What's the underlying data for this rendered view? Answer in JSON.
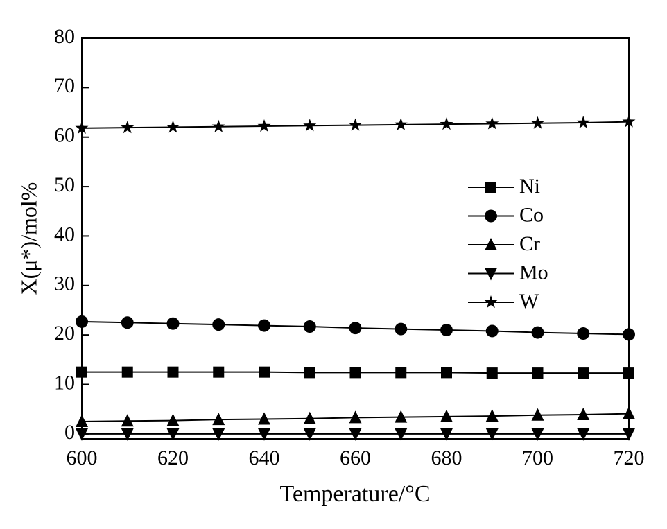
{
  "chart_data": {
    "type": "line",
    "x_label": "Temperature/°C",
    "y_label": "X(μ*)/mol%",
    "x": [
      600,
      610,
      620,
      630,
      640,
      650,
      660,
      670,
      680,
      690,
      700,
      710,
      720
    ],
    "series": [
      {
        "name": "Ni",
        "color": "#000000",
        "marker": "square",
        "values": [
          12.5,
          12.5,
          12.5,
          12.5,
          12.5,
          12.4,
          12.4,
          12.4,
          12.4,
          12.3,
          12.3,
          12.3,
          12.3
        ]
      },
      {
        "name": "Co",
        "color": "#000000",
        "marker": "circle",
        "values": [
          22.7,
          22.5,
          22.3,
          22.1,
          21.9,
          21.7,
          21.4,
          21.2,
          21.0,
          20.8,
          20.5,
          20.3,
          20.1
        ]
      },
      {
        "name": "Cr",
        "color": "#000000",
        "marker": "triangle-up",
        "values": [
          2.5,
          2.6,
          2.7,
          2.9,
          3.0,
          3.1,
          3.3,
          3.4,
          3.5,
          3.6,
          3.8,
          3.9,
          4.1
        ]
      },
      {
        "name": "Mo",
        "color": "#000000",
        "marker": "triangle-down",
        "values": [
          0,
          0,
          0,
          0,
          0,
          0,
          0,
          0,
          0,
          0,
          0,
          0,
          0
        ]
      },
      {
        "name": "W",
        "color": "#000000",
        "marker": "star",
        "values": [
          61.8,
          61.9,
          62.0,
          62.1,
          62.2,
          62.3,
          62.4,
          62.5,
          62.6,
          62.7,
          62.8,
          62.9,
          63.1
        ]
      }
    ],
    "xlim": [
      600,
      720
    ],
    "xticks": [
      600,
      620,
      640,
      660,
      680,
      700,
      720
    ],
    "ylim": [
      -1,
      80
    ],
    "yticks": [
      0,
      10,
      20,
      30,
      40,
      50,
      60,
      70,
      80
    ],
    "grid": false,
    "legend": "right"
  }
}
